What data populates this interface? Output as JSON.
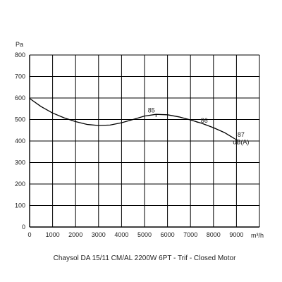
{
  "chart_data": {
    "type": "line",
    "title": "Chaysol DA 15/11 CM/AL 2200W 6PT - Trif - Closed Motor",
    "xlabel": "m³/h",
    "ylabel": "Pa",
    "xlim": [
      0,
      10000
    ],
    "ylim": [
      0,
      800
    ],
    "x_ticks": [
      "0",
      "1000",
      "2000",
      "3000",
      "4000",
      "5000",
      "6000",
      "7000",
      "8000",
      "9000"
    ],
    "y_ticks": [
      "0",
      "100",
      "200",
      "300",
      "400",
      "500",
      "600",
      "700",
      "800"
    ],
    "grid": true,
    "series": [
      {
        "x": [
          0,
          500,
          1000,
          1500,
          2000,
          2500,
          3000,
          3500,
          4000,
          4500,
          5000,
          5500,
          6000,
          6500,
          7000,
          7500,
          8000,
          8500,
          8900
        ],
        "values": [
          598,
          560,
          530,
          508,
          490,
          477,
          472,
          474,
          485,
          500,
          516,
          524,
          522,
          512,
          498,
          482,
          462,
          438,
          412
        ]
      }
    ],
    "annotations": [
      {
        "text": "85",
        "x": 5300,
        "y": 532
      },
      {
        "text": "86",
        "x": 7600,
        "y": 486
      },
      {
        "text": "87",
        "x": 9200,
        "y": 420
      },
      {
        "text": "dB(A)",
        "x": 9200,
        "y": 386
      }
    ],
    "line_color": "#000000",
    "grid_color": "#000000"
  }
}
